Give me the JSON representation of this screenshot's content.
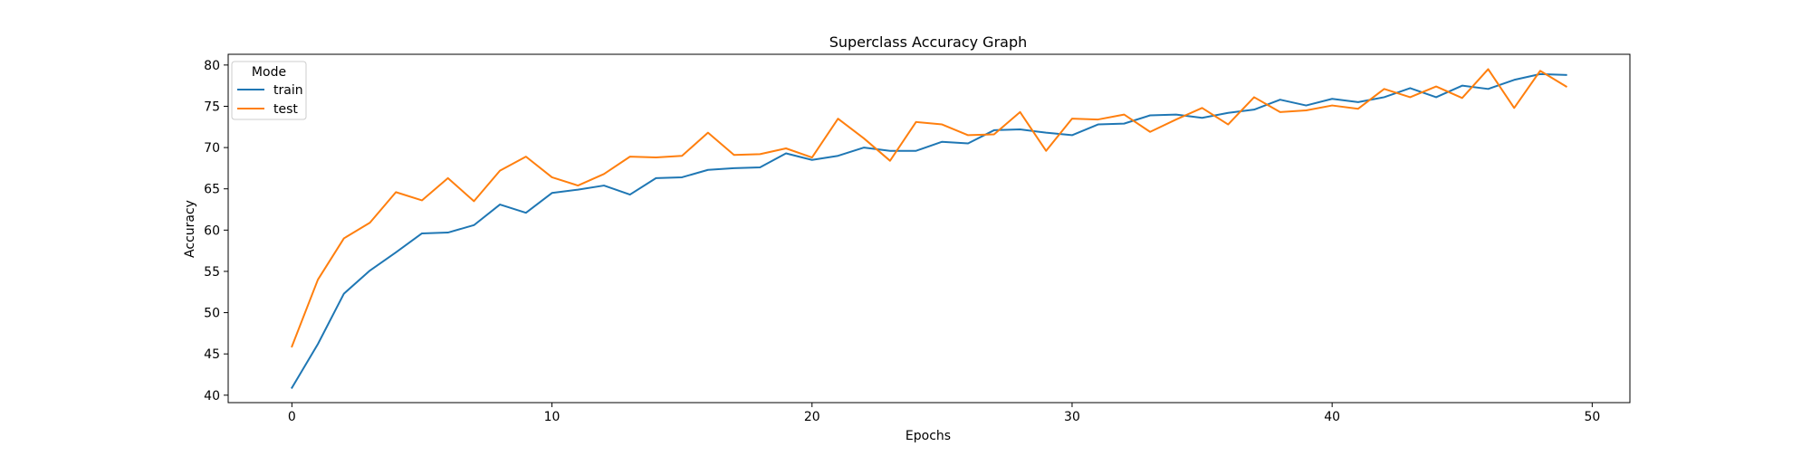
{
  "chart_data": {
    "type": "line",
    "title": "Superclass Accuracy Graph",
    "xlabel": "Epochs",
    "ylabel": "Accuracy",
    "xlim": [
      -2.45,
      51.45
    ],
    "ylim": [
      39.1,
      81.3
    ],
    "xticks": [
      0,
      10,
      20,
      30,
      40,
      50
    ],
    "yticks": [
      40,
      45,
      50,
      55,
      60,
      65,
      70,
      75,
      80
    ],
    "grid": false,
    "legend": {
      "title": "Mode",
      "placement": "top-left"
    },
    "x": [
      0,
      1,
      2,
      3,
      4,
      5,
      6,
      7,
      8,
      9,
      10,
      11,
      12,
      13,
      14,
      15,
      16,
      17,
      18,
      19,
      20,
      21,
      22,
      23,
      24,
      25,
      26,
      27,
      28,
      29,
      30,
      31,
      32,
      33,
      34,
      35,
      36,
      37,
      38,
      39,
      40,
      41,
      42,
      43,
      44,
      45,
      46,
      47,
      48,
      49
    ],
    "series": [
      {
        "name": "train",
        "color": "#1f77b4",
        "values": [
          40.9,
          46.2,
          52.3,
          55.1,
          57.3,
          59.6,
          59.7,
          60.6,
          63.1,
          62.1,
          64.5,
          64.9,
          65.4,
          64.3,
          66.3,
          66.4,
          67.3,
          67.5,
          67.6,
          69.3,
          68.5,
          69.0,
          70.0,
          69.6,
          69.6,
          70.7,
          70.5,
          72.1,
          72.2,
          71.8,
          71.5,
          72.8,
          72.9,
          73.9,
          74.0,
          73.6,
          74.2,
          74.6,
          75.8,
          75.1,
          75.9,
          75.5,
          76.1,
          77.2,
          76.1,
          77.5,
          77.1,
          78.2,
          78.9,
          78.8
        ]
      },
      {
        "name": "test",
        "color": "#ff7f0e",
        "values": [
          45.9,
          54.0,
          59.0,
          60.9,
          64.6,
          63.6,
          66.3,
          63.5,
          67.2,
          68.9,
          66.4,
          65.4,
          66.8,
          68.9,
          68.8,
          69.0,
          71.8,
          69.1,
          69.2,
          69.9,
          68.8,
          73.5,
          71.1,
          68.4,
          73.1,
          72.8,
          71.5,
          71.6,
          74.3,
          69.6,
          73.5,
          73.4,
          74.0,
          71.9,
          73.4,
          74.8,
          72.8,
          76.1,
          74.3,
          74.5,
          75.1,
          74.7,
          77.1,
          76.1,
          77.4,
          76.0,
          79.5,
          74.8,
          79.3,
          77.4
        ]
      }
    ]
  }
}
